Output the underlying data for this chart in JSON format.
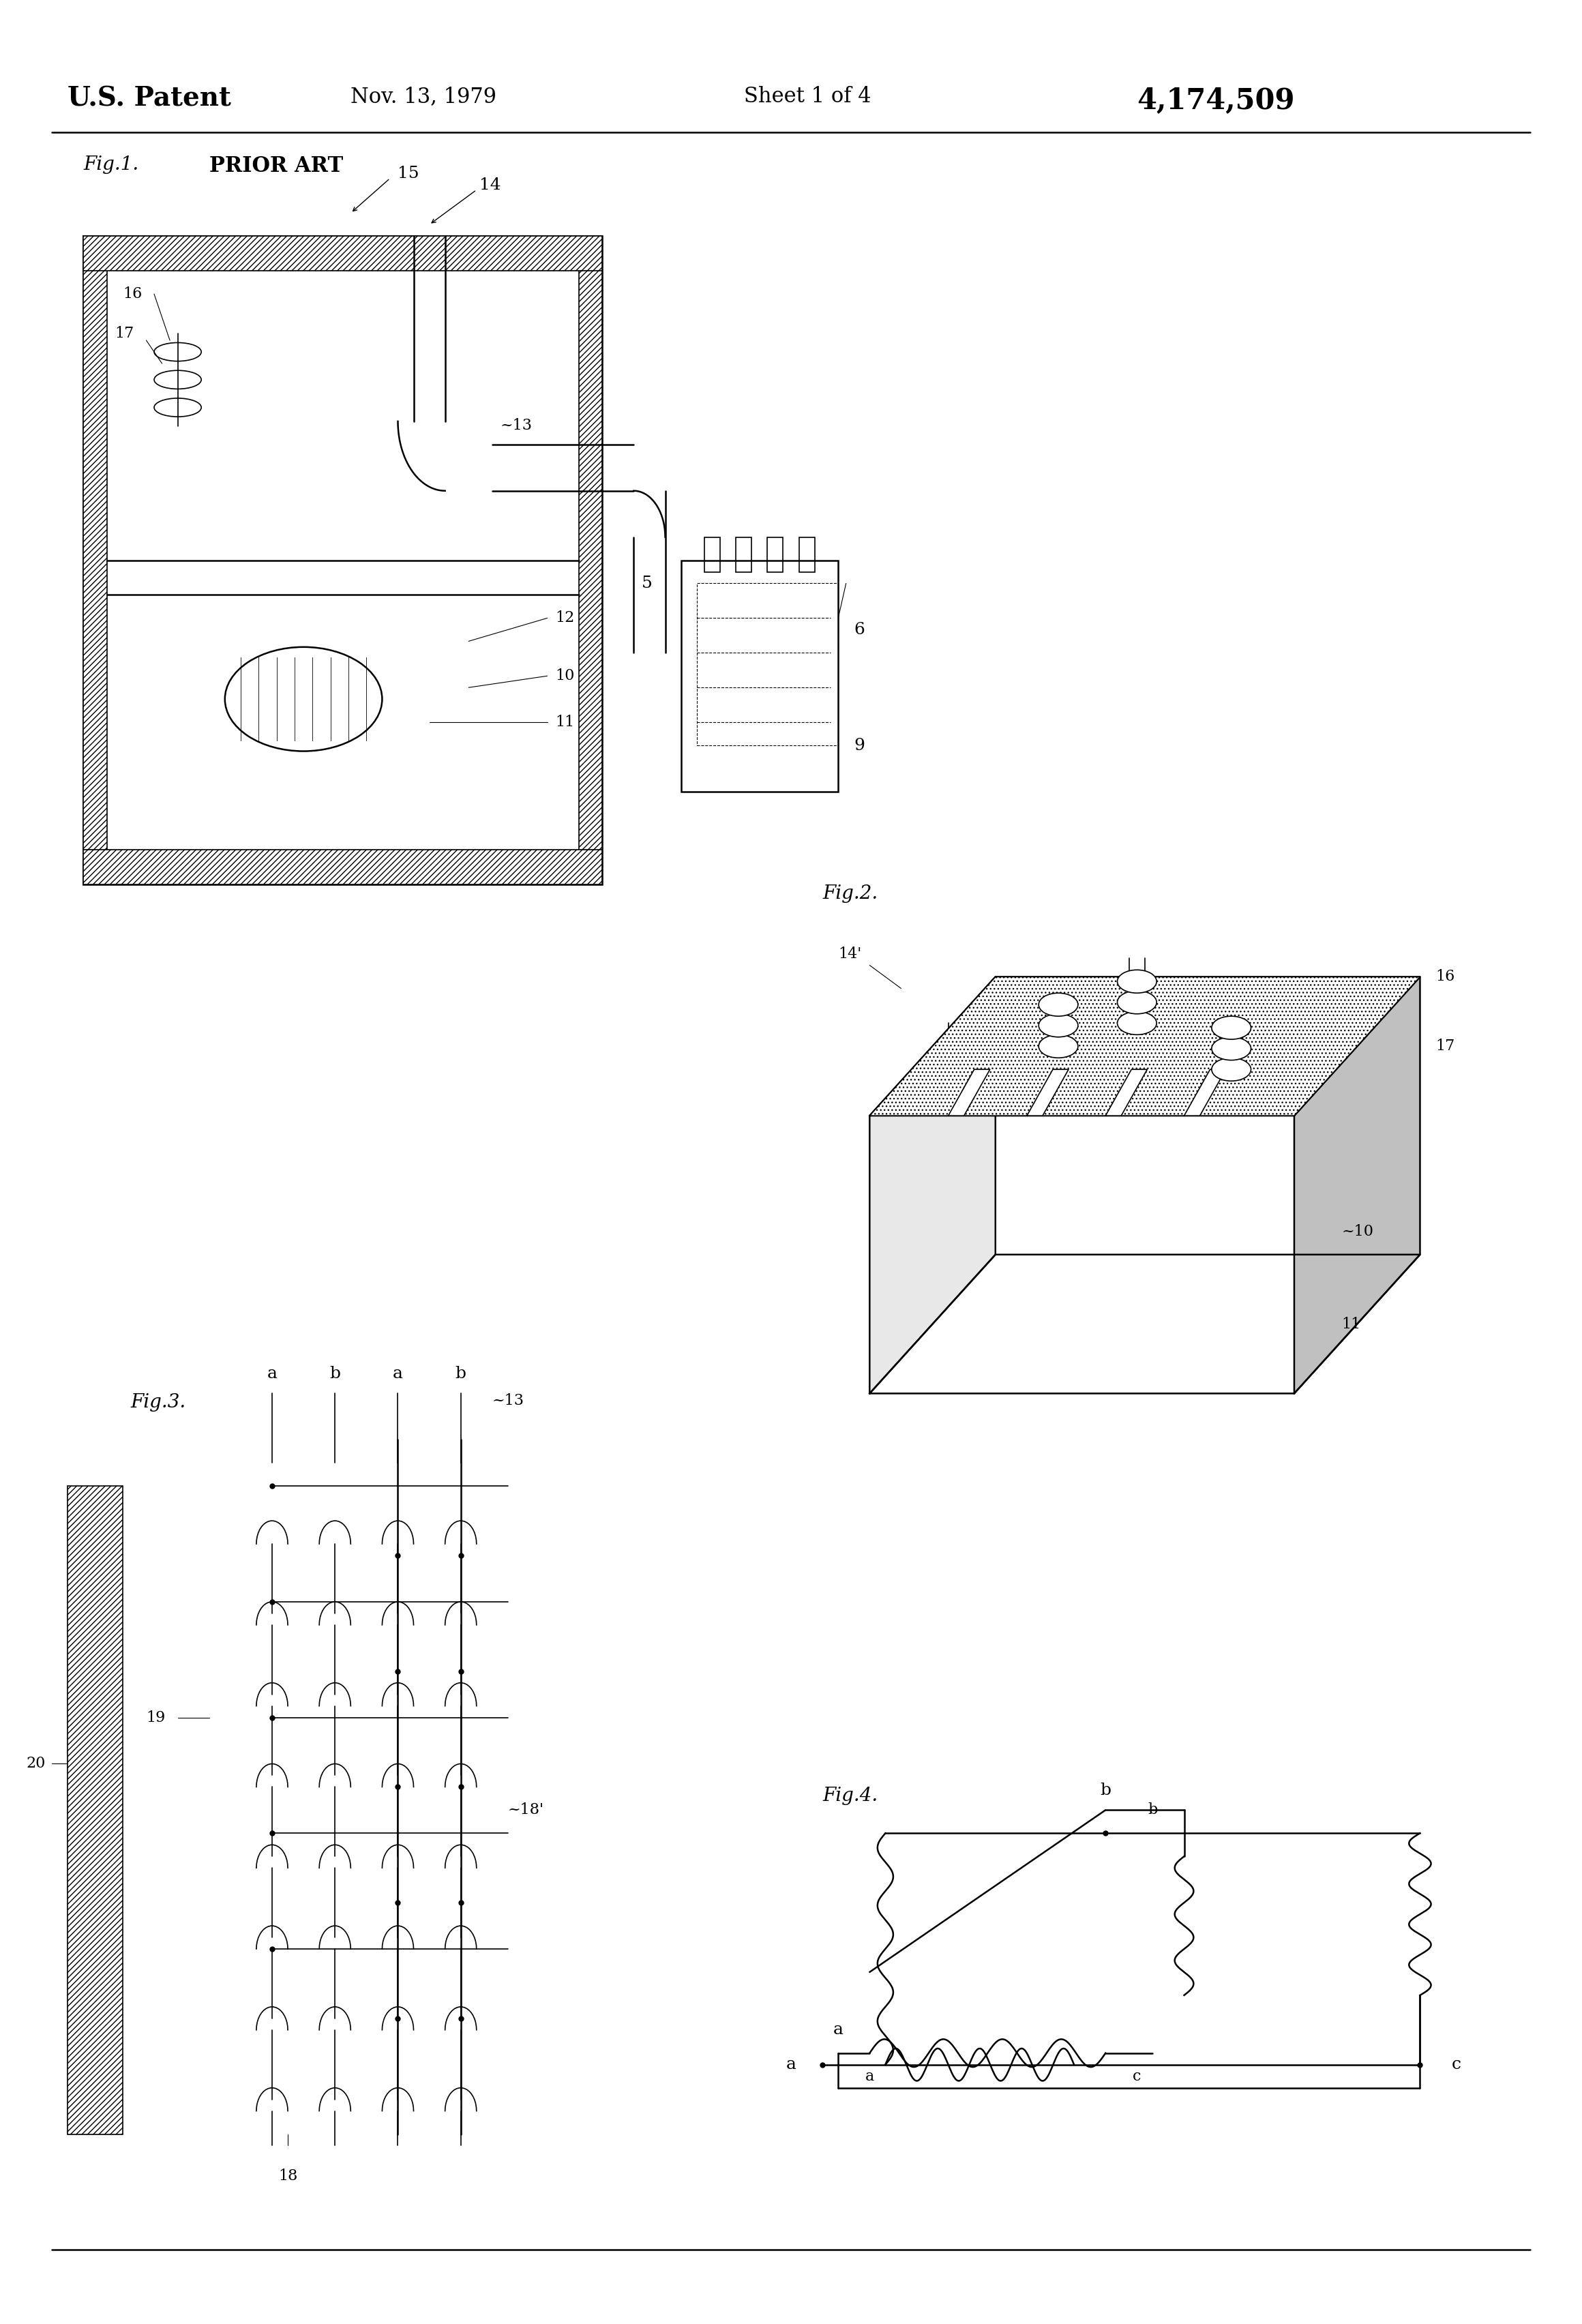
{
  "bg_color": "#ffffff",
  "line_color": "#000000",
  "header_text": "U.S. Patent",
  "header_date": "Nov. 13, 1979",
  "header_sheet": "Sheet 1 of 4",
  "header_patent": "4,174,509",
  "fig_labels": [
    "Fig.1.",
    "PRIOR ART",
    "Fig.2.",
    "Fig.3.",
    "Fig.4."
  ],
  "ref_numbers": {
    "fig1": [
      "15",
      "14",
      "16",
      "17",
      "13",
      "5",
      "6",
      "9",
      "12",
      "10",
      "11"
    ],
    "fig2": [
      "14'",
      "16",
      "17",
      "16",
      "17",
      "10",
      "11"
    ],
    "fig3": [
      "19",
      "20",
      "a",
      "b",
      "a",
      "b",
      "13",
      "18'",
      "18"
    ],
    "fig4": [
      "a",
      "b",
      "c"
    ]
  },
  "page_width": 23.2,
  "page_height": 34.08
}
